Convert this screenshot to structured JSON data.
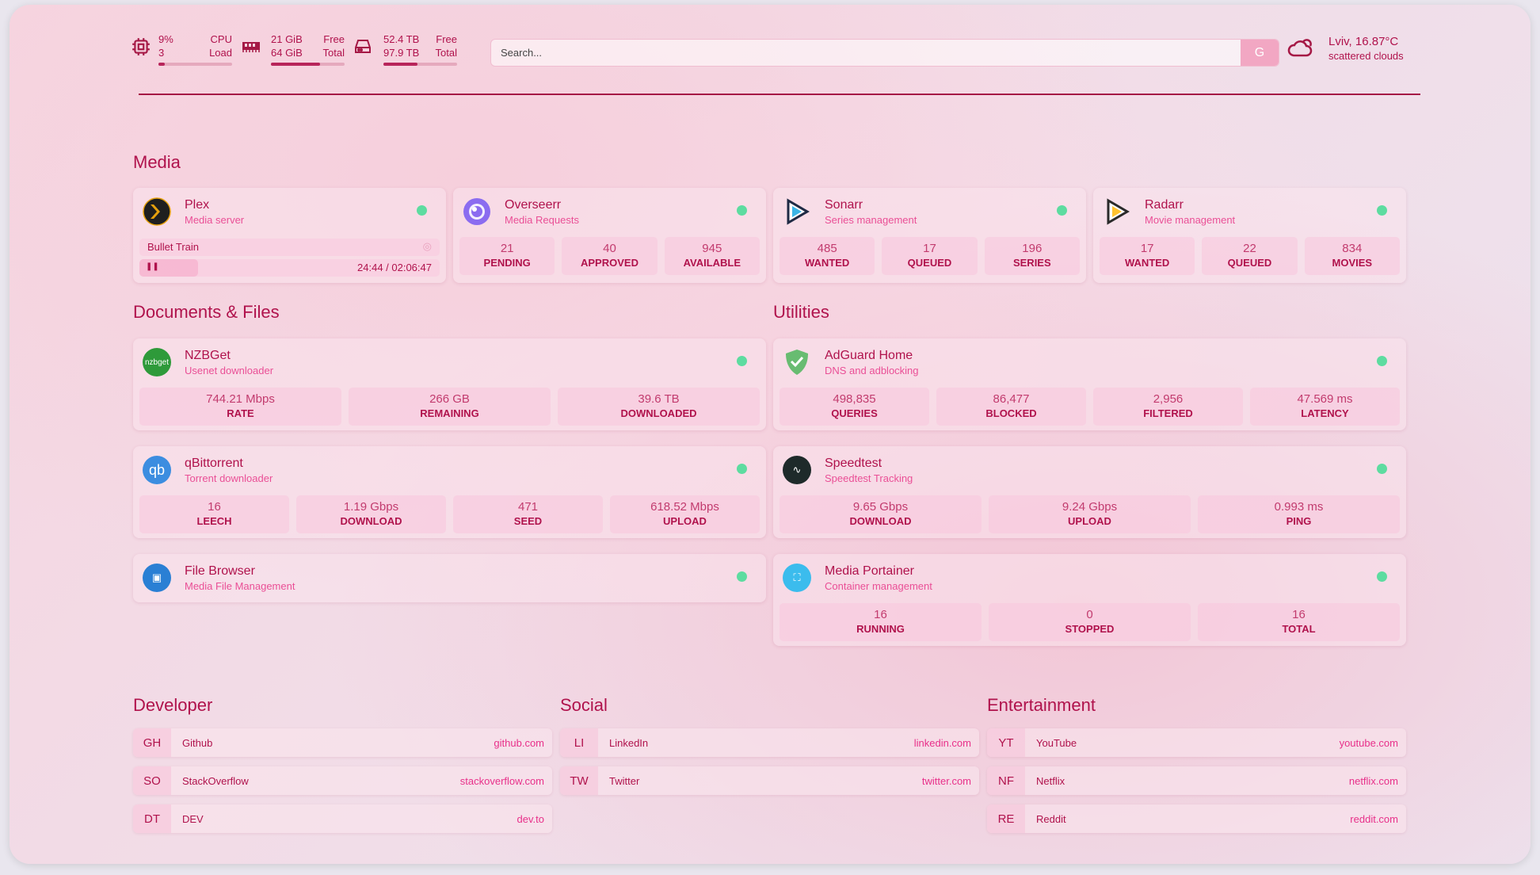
{
  "header": {
    "cpu": {
      "value": "9%",
      "label": "CPU",
      "sub": "3",
      "sub_label": "Load",
      "percent": 9
    },
    "mem": {
      "value": "21 GiB",
      "label": "Free",
      "sub": "64 GiB",
      "sub_label": "Total",
      "percent": 67
    },
    "disk": {
      "value": "52.4 TB",
      "label": "Free",
      "sub": "97.9 TB",
      "sub_label": "Total",
      "percent": 46
    },
    "search_placeholder": "Search...",
    "search_button": "G",
    "weather": {
      "location": "Lviv, 16.87°C",
      "desc": "scattered clouds"
    }
  },
  "sections": {
    "media": "Media",
    "docs": "Documents & Files",
    "utilities": "Utilities",
    "developer": "Developer",
    "social": "Social",
    "entertainment": "Entertainment"
  },
  "media": [
    {
      "name": "Plex",
      "desc": "Media server",
      "icon": "plex-icon",
      "color": "#1f1f1f",
      "now_playing": "Bullet Train",
      "time": "24:44 / 02:06:47",
      "progress": 19.5
    },
    {
      "name": "Overseerr",
      "desc": "Media Requests",
      "icon": "overseerr-icon",
      "color": "#8b6cf0",
      "stats": [
        [
          "21",
          "PENDING"
        ],
        [
          "40",
          "APPROVED"
        ],
        [
          "945",
          "AVAILABLE"
        ]
      ]
    },
    {
      "name": "Sonarr",
      "desc": "Series management",
      "icon": "sonarr-icon",
      "color": "#ffffff",
      "stats": [
        [
          "485",
          "WANTED"
        ],
        [
          "17",
          "QUEUED"
        ],
        [
          "196",
          "SERIES"
        ]
      ]
    },
    {
      "name": "Radarr",
      "desc": "Movie management",
      "icon": "radarr-icon",
      "color": "#ffffff",
      "stats": [
        [
          "17",
          "WANTED"
        ],
        [
          "22",
          "QUEUED"
        ],
        [
          "834",
          "MOVIES"
        ]
      ]
    }
  ],
  "docs": [
    {
      "name": "NZBGet",
      "desc": "Usenet downloader",
      "icon": "nzbget-icon",
      "color": "#2e9a3a",
      "glyph": "nzbget",
      "stats": [
        [
          "744.21 Mbps",
          "RATE"
        ],
        [
          "266 GB",
          "REMAINING"
        ],
        [
          "39.6 TB",
          "DOWNLOADED"
        ]
      ]
    },
    {
      "name": "qBittorrent",
      "desc": "Torrent downloader",
      "icon": "qbittorrent-icon",
      "color": "#3c8de0",
      "glyph": "qb",
      "stats": [
        [
          "16",
          "LEECH"
        ],
        [
          "1.19 Gbps",
          "DOWNLOAD"
        ],
        [
          "471",
          "SEED"
        ],
        [
          "618.52 Mbps",
          "UPLOAD"
        ]
      ]
    },
    {
      "name": "File Browser",
      "desc": "Media File Management",
      "icon": "filebrowser-icon",
      "color": "#2a7fd4",
      "glyph": "▣",
      "stats": []
    }
  ],
  "utilities": [
    {
      "name": "AdGuard Home",
      "desc": "DNS and adblocking",
      "icon": "adguard-shield-icon",
      "color": "#68bc71",
      "glyph": "✓",
      "stats": [
        [
          "498,835",
          "QUERIES"
        ],
        [
          "86,477",
          "BLOCKED"
        ],
        [
          "2,956",
          "FILTERED"
        ],
        [
          "47.569 ms",
          "LATENCY"
        ]
      ]
    },
    {
      "name": "Speedtest",
      "desc": "Speedtest Tracking",
      "icon": "speedtest-icon",
      "color": "#1e2a2a",
      "glyph": "∿",
      "stats": [
        [
          "9.65 Gbps",
          "DOWNLOAD"
        ],
        [
          "9.24 Gbps",
          "UPLOAD"
        ],
        [
          "0.993 ms",
          "PING"
        ]
      ]
    },
    {
      "name": "Media Portainer",
      "desc": "Container management",
      "icon": "portainer-icon",
      "color": "#3bbced",
      "glyph": "⛶",
      "stats": [
        [
          "16",
          "RUNNING"
        ],
        [
          "0",
          "STOPPED"
        ],
        [
          "16",
          "TOTAL"
        ]
      ]
    }
  ],
  "bookmarks": {
    "developer": [
      [
        "GH",
        "Github",
        "github.com"
      ],
      [
        "SO",
        "StackOverflow",
        "stackoverflow.com"
      ],
      [
        "DT",
        "DEV",
        "dev.to"
      ]
    ],
    "social": [
      [
        "LI",
        "LinkedIn",
        "linkedin.com"
      ],
      [
        "TW",
        "Twitter",
        "twitter.com"
      ]
    ],
    "entertainment": [
      [
        "YT",
        "YouTube",
        "youtube.com"
      ],
      [
        "NF",
        "Netflix",
        "netflix.com"
      ],
      [
        "RE",
        "Reddit",
        "reddit.com"
      ]
    ]
  },
  "colors": {
    "accent": "#b0124c",
    "subtext": "#ea4f96",
    "status_up": "#5ddca0"
  }
}
